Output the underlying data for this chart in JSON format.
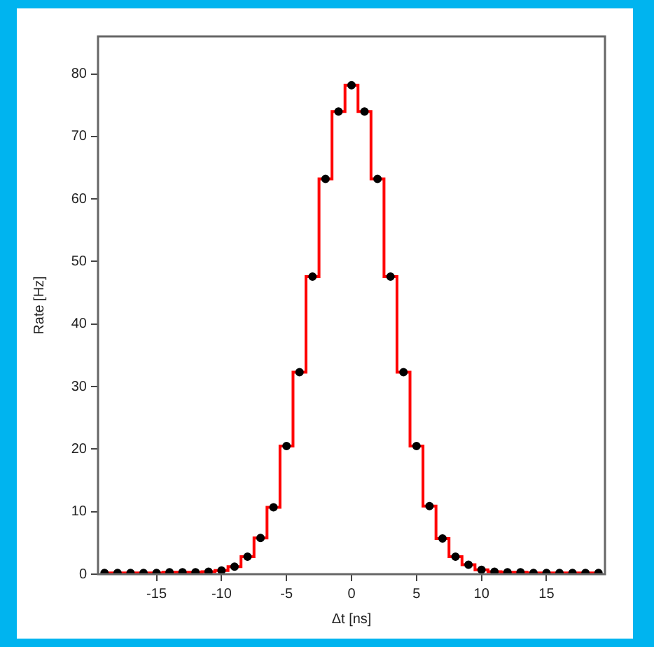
{
  "chart_data": {
    "type": "step",
    "xlabel": "Δt [ns]",
    "ylabel": "Rate [Hz]",
    "x": [
      -19,
      -18,
      -17,
      -16,
      -15,
      -14,
      -13,
      -12,
      -11,
      -10,
      -9,
      -8,
      -7,
      -6,
      -5,
      -4,
      -3,
      -2,
      -1,
      0,
      1,
      2,
      3,
      4,
      5,
      6,
      7,
      8,
      9,
      10,
      11,
      12,
      13,
      14,
      15,
      16,
      17,
      18,
      19
    ],
    "series": [
      {
        "color": "#ff0000",
        "values": [
          0.2,
          0.2,
          0.2,
          0.2,
          0.2,
          0.3,
          0.3,
          0.3,
          0.4,
          0.6,
          1.2,
          2.8,
          5.8,
          10.7,
          20.5,
          32.3,
          47.6,
          63.2,
          74,
          78.2,
          74,
          63.2,
          47.6,
          32.3,
          20.5,
          10.9,
          5.7,
          2.8,
          1.5,
          0.7,
          0.4,
          0.3,
          0.3,
          0.2,
          0.2,
          0.2,
          0.2,
          0.2,
          0.2
        ]
      },
      {
        "type": "scatter",
        "color": "#000000",
        "marker": "circle",
        "values": [
          0.2,
          0.2,
          0.2,
          0.2,
          0.2,
          0.3,
          0.3,
          0.3,
          0.4,
          0.6,
          1.2,
          2.8,
          5.8,
          10.7,
          20.5,
          32.3,
          47.6,
          63.2,
          74,
          78.2,
          74,
          63.2,
          47.6,
          32.3,
          20.5,
          10.9,
          5.7,
          2.8,
          1.5,
          0.7,
          0.4,
          0.3,
          0.3,
          0.2,
          0.2,
          0.2,
          0.2,
          0.2,
          0.2
        ]
      }
    ],
    "xlim": [
      -19.5,
      19.5
    ],
    "xticks": [
      -15,
      -10,
      -5,
      0,
      5,
      10,
      15
    ],
    "ylim": [
      0,
      86
    ],
    "yticks": [
      0,
      10,
      20,
      30,
      40,
      50,
      60,
      70,
      80
    ],
    "grid": false,
    "legend": false
  }
}
